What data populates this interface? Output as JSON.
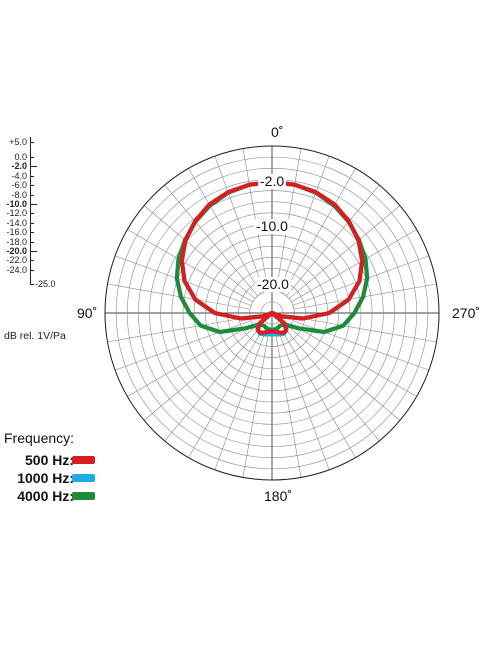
{
  "chart_data": {
    "type": "polar",
    "angle_labels": [
      "0˚",
      "90˚",
      "180˚",
      "270˚"
    ],
    "radial_axis": {
      "range_db": [
        -25.0,
        5.0
      ],
      "ring_step_db": 2.0,
      "spoke_step_deg": 10,
      "labeled_rings": [
        "-2.0",
        "-10.0",
        "-20.0"
      ]
    },
    "scale_ticks": [
      {
        "label": "+5.0",
        "major": false
      },
      {
        "label": "0.0",
        "major": false
      },
      {
        "label": "-2.0",
        "major": true
      },
      {
        "label": "-4.0",
        "major": false
      },
      {
        "label": "-6.0",
        "major": false
      },
      {
        "label": "-8.0",
        "major": false
      },
      {
        "label": "-10.0",
        "major": true
      },
      {
        "label": "-12.0",
        "major": false
      },
      {
        "label": "-14.0",
        "major": false
      },
      {
        "label": "-16.0",
        "major": false
      },
      {
        "label": "-18.0",
        "major": false
      },
      {
        "label": "-20.0",
        "major": true
      },
      {
        "label": "-22.0",
        "major": false
      },
      {
        "label": "-24.0",
        "major": false
      }
    ],
    "scale_min_label": "-25.0",
    "unit_label": "dB rel. 1V/Pa",
    "legend_title": "Frequency:",
    "series": [
      {
        "name": "4000 Hz:",
        "color": "#1e8a3c",
        "points": [
          [
            0,
            -1.5
          ],
          [
            10,
            -1.6
          ],
          [
            20,
            -2.0
          ],
          [
            30,
            -2.7
          ],
          [
            40,
            -3.6
          ],
          [
            50,
            -4.6
          ],
          [
            60,
            -5.6
          ],
          [
            70,
            -6.8
          ],
          [
            80,
            -8.4
          ],
          [
            90,
            -10.2
          ],
          [
            100,
            -12.0
          ],
          [
            110,
            -15.0
          ],
          [
            120,
            -19.5
          ],
          [
            130,
            -21.7
          ],
          [
            140,
            -22.2
          ],
          [
            150,
            -22.3
          ],
          [
            160,
            -22.1
          ],
          [
            170,
            -22.0
          ],
          [
            180,
            -22.0
          ]
        ]
      },
      {
        "name": "1000 Hz:",
        "color": "#1aaee5",
        "points": [
          [
            0,
            -1.5
          ],
          [
            10,
            -1.6
          ],
          [
            20,
            -1.9
          ],
          [
            30,
            -2.5
          ],
          [
            40,
            -3.5
          ],
          [
            50,
            -4.7
          ],
          [
            60,
            -6.3
          ],
          [
            70,
            -8.3
          ],
          [
            80,
            -11.0
          ],
          [
            90,
            -14.7
          ],
          [
            100,
            -19.3
          ],
          [
            110,
            -23.2
          ],
          [
            120,
            -25.0
          ],
          [
            130,
            -22.1
          ],
          [
            140,
            -21.0
          ],
          [
            150,
            -20.7
          ],
          [
            160,
            -20.9
          ],
          [
            170,
            -21.1
          ],
          [
            180,
            -21.2
          ]
        ]
      },
      {
        "name": "500 Hz:",
        "color": "#d61f1f",
        "points": [
          [
            0,
            -1.5
          ],
          [
            10,
            -1.6
          ],
          [
            20,
            -1.9
          ],
          [
            30,
            -2.5
          ],
          [
            40,
            -3.5
          ],
          [
            50,
            -4.7
          ],
          [
            60,
            -6.3
          ],
          [
            70,
            -8.3
          ],
          [
            80,
            -11.0
          ],
          [
            90,
            -14.7
          ],
          [
            100,
            -19.3
          ],
          [
            110,
            -23.2
          ],
          [
            120,
            -25.0
          ],
          [
            130,
            -22.1
          ],
          [
            140,
            -21.0
          ],
          [
            150,
            -20.9
          ],
          [
            160,
            -21.3
          ],
          [
            170,
            -21.6
          ],
          [
            180,
            -21.7
          ]
        ]
      }
    ]
  }
}
